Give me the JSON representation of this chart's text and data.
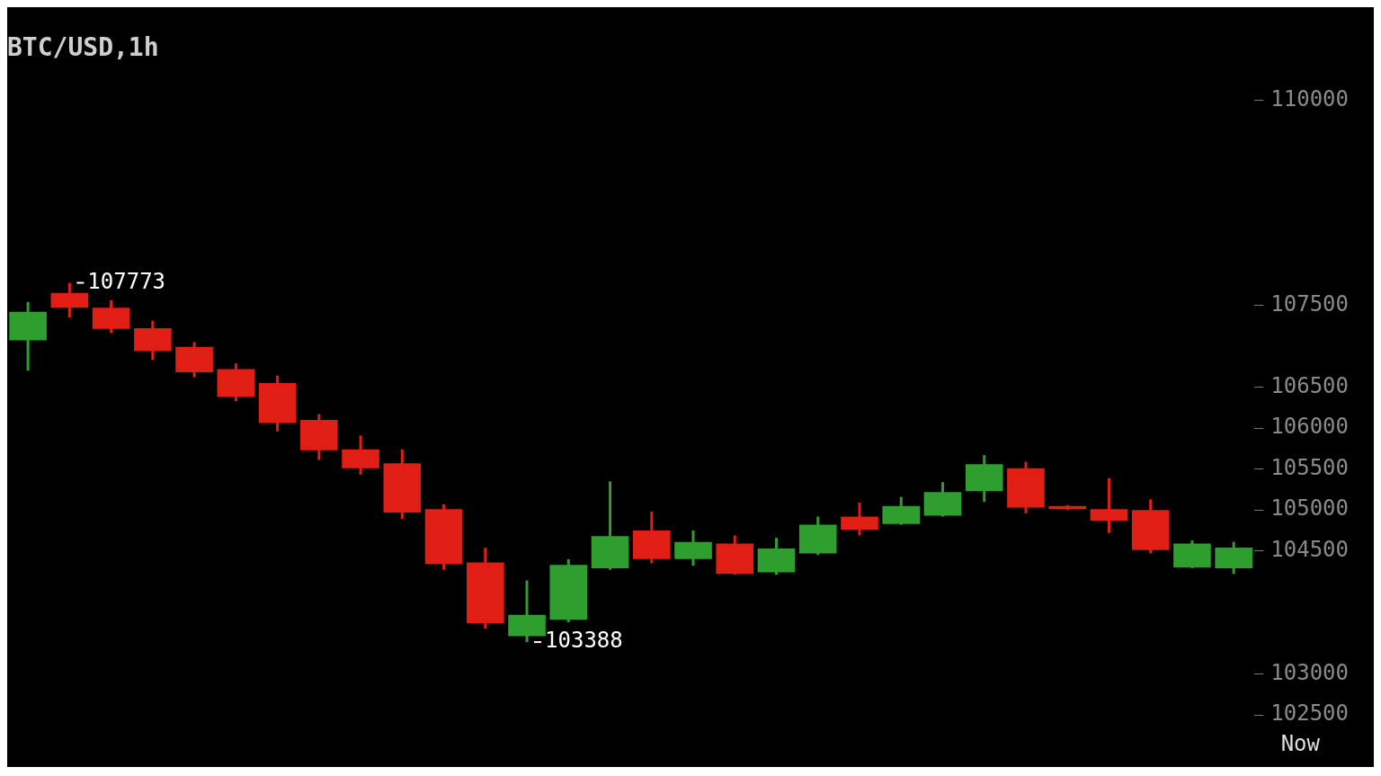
{
  "chart_data": {
    "type": "candlestick",
    "title": "BTC/USD,1h",
    "categories": [
      null,
      null,
      null,
      null,
      null,
      null,
      null,
      null,
      null,
      null,
      null,
      null,
      null,
      null,
      null,
      null,
      null,
      null,
      null,
      null,
      null,
      null,
      null,
      null,
      null,
      null,
      null,
      null,
      null,
      null
    ],
    "ohlc": [
      [
        107070,
        107540,
        106700,
        107420
      ],
      [
        107650,
        107773,
        107350,
        107470
      ],
      [
        107470,
        107560,
        107160,
        107210
      ],
      [
        107220,
        107310,
        106830,
        106940
      ],
      [
        106990,
        107050,
        106620,
        106680
      ],
      [
        106720,
        106790,
        106330,
        106380
      ],
      [
        106550,
        106640,
        105960,
        106060
      ],
      [
        106100,
        106170,
        105610,
        105730
      ],
      [
        105740,
        105910,
        105430,
        105510
      ],
      [
        105570,
        105740,
        104890,
        104970
      ],
      [
        105010,
        105070,
        104270,
        104340
      ],
      [
        104360,
        104540,
        103550,
        103620
      ],
      [
        103460,
        104140,
        103388,
        103720
      ],
      [
        103660,
        104400,
        103630,
        104330
      ],
      [
        104290,
        105350,
        104270,
        104680
      ],
      [
        104750,
        104980,
        104350,
        104400
      ],
      [
        104400,
        104750,
        104320,
        104610
      ],
      [
        104590,
        104690,
        104210,
        104220
      ],
      [
        104240,
        104660,
        104210,
        104530
      ],
      [
        104470,
        104920,
        104450,
        104820
      ],
      [
        104920,
        105090,
        104690,
        104760
      ],
      [
        104830,
        105160,
        104820,
        105050
      ],
      [
        104930,
        105340,
        104920,
        105220
      ],
      [
        105230,
        105670,
        105100,
        105560
      ],
      [
        105510,
        105590,
        104960,
        105030
      ],
      [
        105050,
        105060,
        105000,
        105010
      ],
      [
        105010,
        105390,
        104720,
        104870
      ],
      [
        105000,
        105130,
        104470,
        104510
      ],
      [
        104300,
        104630,
        104290,
        104590
      ],
      [
        104290,
        104610,
        104220,
        104540
      ]
    ],
    "colors": [
      "#2e9e2e",
      "#e01e14",
      "#e01e14",
      "#e01e14",
      "#e01e14",
      "#e01e14",
      "#e01e14",
      "#e01e14",
      "#e01e14",
      "#e01e14",
      "#e01e14",
      "#e01e14",
      "#2e9e2e",
      "#2e9e2e",
      "#2e9e2e",
      "#e01e14",
      "#2e9e2e",
      "#e01e14",
      "#2e9e2e",
      "#2e9e2e",
      "#e01e14",
      "#2e9e2e",
      "#2e9e2e",
      "#2e9e2e",
      "#e01e14",
      "#e01e14",
      "#e01e14",
      "#e01e14",
      "#2e9e2e",
      "#2e9e2e"
    ],
    "ylim": [
      102500,
      110000
    ],
    "yticks": [
      110000,
      107500,
      106500,
      106000,
      105500,
      105000,
      104500,
      103000,
      102500
    ],
    "tick_labels": "y",
    "legend": false,
    "annotations": [
      "107773",
      "103388",
      "Now"
    ]
  }
}
